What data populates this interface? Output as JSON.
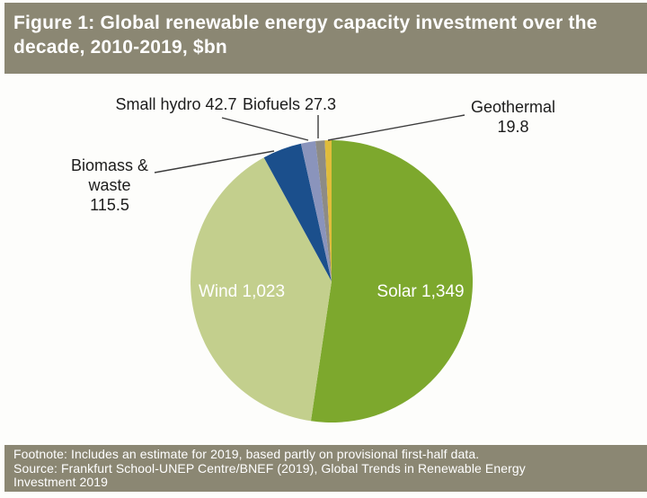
{
  "header": {
    "title": "Figure 1: Global renewable energy capacity investment over the decade, 2010-2019, $bn"
  },
  "chart_data": {
    "type": "pie",
    "title": "Global renewable energy capacity investment over the decade, 2010-2019",
    "unit": "$bn",
    "start_angle_deg": 0,
    "direction": "clockwise",
    "legend_position": "none",
    "slices": [
      {
        "label": "Solar",
        "value": 1349,
        "color": "#7da82d",
        "label_position": "inside"
      },
      {
        "label": "Wind",
        "value": 1023,
        "color": "#c3cf8d",
        "label_position": "inside"
      },
      {
        "label": "Biomass & waste",
        "value": 115.5,
        "color": "#1b4f8c",
        "label_position": "outside"
      },
      {
        "label": "Small hydro",
        "value": 42.7,
        "color": "#8a94bc",
        "label_position": "outside"
      },
      {
        "label": "Biofuels",
        "value": 27.3,
        "color": "#8d8b85",
        "label_position": "outside"
      },
      {
        "label": "Geothermal",
        "value": 19.8,
        "color": "#e0bc3b",
        "label_position": "outside"
      }
    ]
  },
  "labels": {
    "small_hydro": "Small hydro 42.7",
    "biofuels": "Biofuels 27.3",
    "geothermal_name": "Geothermal",
    "geothermal_value": "19.8",
    "biomass_line1": "Biomass &",
    "biomass_line2": "waste",
    "biomass_line3": "115.5",
    "wind_inside": "Wind 1,023",
    "solar_inside": "Solar 1,349"
  },
  "footer": {
    "footnote": "Footnote: Includes an estimate for 2019, based partly on provisional first-half data.",
    "source": "Source: Frankfurt School-UNEP Centre/BNEF (2019), Global Trends in Renewable Energy Investment 2019"
  },
  "colors": {
    "panel_background": "#8b8773",
    "panel_text": "#ffffff",
    "chart_background": "#fdfdfb",
    "leader_line": "#3c3c3c"
  }
}
